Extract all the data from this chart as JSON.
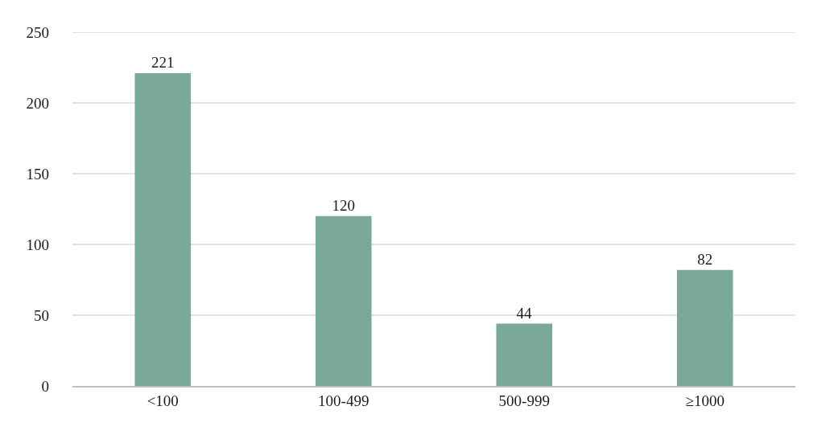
{
  "chart_data": {
    "type": "bar",
    "categories": [
      "<100",
      "100-499",
      "500-999",
      "≥1000"
    ],
    "values": [
      221,
      120,
      44,
      82
    ],
    "color": "#7aa89b",
    "ylim": [
      0,
      250
    ],
    "yticks": [
      0,
      50,
      100,
      150,
      200,
      250
    ],
    "grid": "y",
    "data_labels": true
  }
}
